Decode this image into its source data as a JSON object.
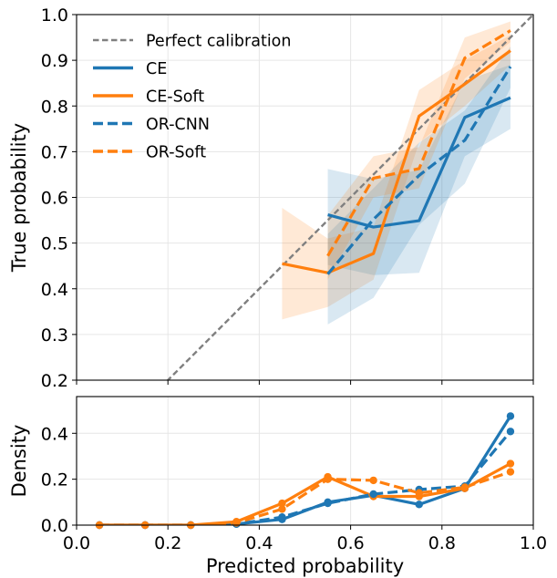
{
  "chart_data": [
    {
      "type": "line",
      "title": "",
      "xlabel": "",
      "ylabel": "True probability",
      "xlim": [
        0.0,
        1.0
      ],
      "ylim": [
        0.2,
        1.0
      ],
      "xticks": [
        "0.0",
        "0.2",
        "0.4",
        "0.6",
        "0.8",
        "1.0"
      ],
      "yticks": [
        "0.2",
        "0.3",
        "0.4",
        "0.5",
        "0.6",
        "0.7",
        "0.8",
        "0.9",
        "1.0"
      ],
      "show_xtick_labels": false,
      "grid": true,
      "legend_position": "top-left",
      "reference_line": {
        "name": "Perfect calibration",
        "x": [
          0.0,
          1.0
        ],
        "y": [
          0.0,
          1.0
        ],
        "color": "#808080",
        "dash": true
      },
      "series": [
        {
          "name": "CE",
          "color": "#1f77b4",
          "dash": false,
          "x": [
            0.55,
            0.65,
            0.75,
            0.85,
            0.95
          ],
          "y": [
            0.562,
            0.535,
            0.549,
            0.775,
            0.818
          ],
          "lower": [
            0.452,
            0.43,
            0.435,
            0.69,
            0.75
          ],
          "upper": [
            0.662,
            0.64,
            0.66,
            0.855,
            0.89
          ]
        },
        {
          "name": "CE-Soft",
          "color": "#ff7f0e",
          "dash": false,
          "x": [
            0.45,
            0.55,
            0.65,
            0.75,
            0.85,
            0.95
          ],
          "y": [
            0.455,
            0.435,
            0.477,
            0.778,
            0.848,
            0.921
          ],
          "lower": [
            0.333,
            0.36,
            0.42,
            0.72,
            0.8,
            0.89
          ],
          "upper": [
            0.577,
            0.51,
            0.535,
            0.835,
            0.9,
            0.955
          ]
        },
        {
          "name": "OR-CNN",
          "color": "#1f77b4",
          "dash": true,
          "x": [
            0.55,
            0.65,
            0.75,
            0.85,
            0.95
          ],
          "y": [
            0.432,
            0.552,
            0.648,
            0.725,
            0.886
          ],
          "lower": [
            0.322,
            0.38,
            0.54,
            0.63,
            0.84
          ],
          "upper": [
            0.52,
            0.62,
            0.72,
            0.79,
            0.93
          ]
        },
        {
          "name": "OR-Soft",
          "color": "#ff7f0e",
          "dash": true,
          "x": [
            0.55,
            0.65,
            0.75,
            0.85,
            0.95
          ],
          "y": [
            0.472,
            0.642,
            0.663,
            0.905,
            0.965
          ],
          "lower": [
            0.42,
            0.6,
            0.62,
            0.86,
            0.94
          ],
          "upper": [
            0.56,
            0.69,
            0.71,
            0.95,
            0.985
          ]
        }
      ]
    },
    {
      "type": "line",
      "title": "",
      "xlabel": "Predicted probability",
      "ylabel": "Density",
      "xlim": [
        0.0,
        1.0
      ],
      "ylim": [
        0.0,
        0.56
      ],
      "xticks": [
        "0.0",
        "0.2",
        "0.4",
        "0.6",
        "0.8",
        "1.0"
      ],
      "yticks": [
        "0.0",
        "0.2",
        "0.4"
      ],
      "show_xtick_labels": true,
      "grid": true,
      "markers": true,
      "series": [
        {
          "name": "CE",
          "color": "#1f77b4",
          "dash": false,
          "x": [
            0.05,
            0.15,
            0.25,
            0.35,
            0.45,
            0.55,
            0.65,
            0.75,
            0.85,
            0.95
          ],
          "y": [
            0.0,
            0.0,
            0.0,
            0.005,
            0.025,
            0.1,
            0.13,
            0.09,
            0.16,
            0.475
          ]
        },
        {
          "name": "CE-Soft",
          "color": "#ff7f0e",
          "dash": false,
          "x": [
            0.05,
            0.15,
            0.25,
            0.35,
            0.45,
            0.55,
            0.65,
            0.75,
            0.85,
            0.95
          ],
          "y": [
            0.0,
            0.0,
            0.0,
            0.015,
            0.095,
            0.21,
            0.125,
            0.125,
            0.16,
            0.268
          ]
        },
        {
          "name": "OR-CNN",
          "color": "#1f77b4",
          "dash": true,
          "x": [
            0.05,
            0.15,
            0.25,
            0.35,
            0.45,
            0.55,
            0.65,
            0.75,
            0.85,
            0.95
          ],
          "y": [
            0.0,
            0.0,
            0.0,
            0.005,
            0.035,
            0.095,
            0.135,
            0.155,
            0.17,
            0.408
          ]
        },
        {
          "name": "OR-Soft",
          "color": "#ff7f0e",
          "dash": true,
          "x": [
            0.05,
            0.15,
            0.25,
            0.35,
            0.45,
            0.55,
            0.65,
            0.75,
            0.85,
            0.95
          ],
          "y": [
            0.0,
            0.0,
            0.0,
            0.01,
            0.07,
            0.2,
            0.195,
            0.14,
            0.165,
            0.232
          ]
        }
      ]
    }
  ]
}
